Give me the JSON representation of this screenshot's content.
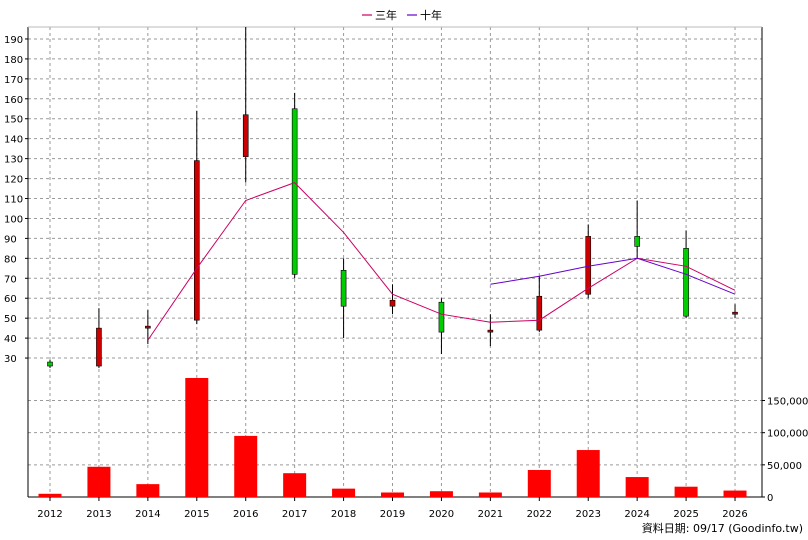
{
  "chart_data": {
    "type": "candlestick+line+bar",
    "legend": {
      "placement": "top-center",
      "items": [
        {
          "label": "三年",
          "color": "#cc0066"
        },
        {
          "label": "十年",
          "color": "#6600cc"
        }
      ]
    },
    "years": [
      "2012",
      "2013",
      "2014",
      "2015",
      "2016",
      "2017",
      "2018",
      "2019",
      "2020",
      "2021",
      "2022",
      "2023",
      "2024",
      "2025",
      "2026"
    ],
    "price_axis": {
      "min": 20,
      "max": 196,
      "ticks": [
        30,
        40,
        50,
        60,
        70,
        80,
        90,
        100,
        110,
        120,
        130,
        140,
        150,
        160,
        170,
        180,
        190
      ]
    },
    "candles": [
      {
        "year": "2012",
        "open": 26,
        "close": 28,
        "high": 29,
        "low": 25
      },
      {
        "year": "2013",
        "open": 45,
        "close": 26,
        "high": 55,
        "low": 25
      },
      {
        "year": "2014",
        "open": 46,
        "close": 45,
        "high": 54,
        "low": 37
      },
      {
        "year": "2015",
        "open": 129,
        "close": 49,
        "high": 154,
        "low": 47
      },
      {
        "year": "2016",
        "open": 152,
        "close": 131,
        "high": 196,
        "low": 118
      },
      {
        "year": "2017",
        "open": 72,
        "close": 155,
        "high": 163,
        "low": 70
      },
      {
        "year": "2018",
        "open": 56,
        "close": 74,
        "high": 80,
        "low": 40
      },
      {
        "year": "2019",
        "open": 59,
        "close": 56,
        "high": 67,
        "low": 52
      },
      {
        "year": "2020",
        "open": 43,
        "close": 58,
        "high": 60,
        "low": 32
      },
      {
        "year": "2021",
        "open": 44,
        "close": 43,
        "high": 52,
        "low": 36
      },
      {
        "year": "2022",
        "open": 61,
        "close": 44,
        "high": 71,
        "low": 43
      },
      {
        "year": "2023",
        "open": 91,
        "close": 62,
        "high": 97,
        "low": 60
      },
      {
        "year": "2024",
        "open": 86,
        "close": 91,
        "high": 109,
        "low": 80
      },
      {
        "year": "2025",
        "open": 51,
        "close": 85,
        "high": 94,
        "low": 50
      },
      {
        "year": "2026",
        "open": 53,
        "close": 52,
        "high": 57,
        "low": 50
      }
    ],
    "series": [
      {
        "name": "三年",
        "color": "#cc0066",
        "start_year": "2014",
        "values": [
          39,
          75,
          109,
          118,
          93,
          62,
          52,
          48,
          49,
          65,
          80,
          76,
          64
        ]
      },
      {
        "name": "十年",
        "color": "#6600cc",
        "start_year": "2021",
        "values": [
          67,
          71,
          76,
          80,
          72,
          62
        ]
      }
    ],
    "volume_axis": {
      "min": 0,
      "max": 185000,
      "ticks": [
        0,
        50000,
        100000,
        150000
      ],
      "tick_labels": [
        "0",
        "50,000",
        "100,000",
        "150,000"
      ]
    },
    "volumes": [
      5000,
      47000,
      20000,
      187000,
      95000,
      37000,
      13000,
      7000,
      9000,
      7000,
      42000,
      73000,
      31000,
      16000,
      10000
    ],
    "source_label": "資料日期: 09/17  (Goodinfo.tw)"
  }
}
